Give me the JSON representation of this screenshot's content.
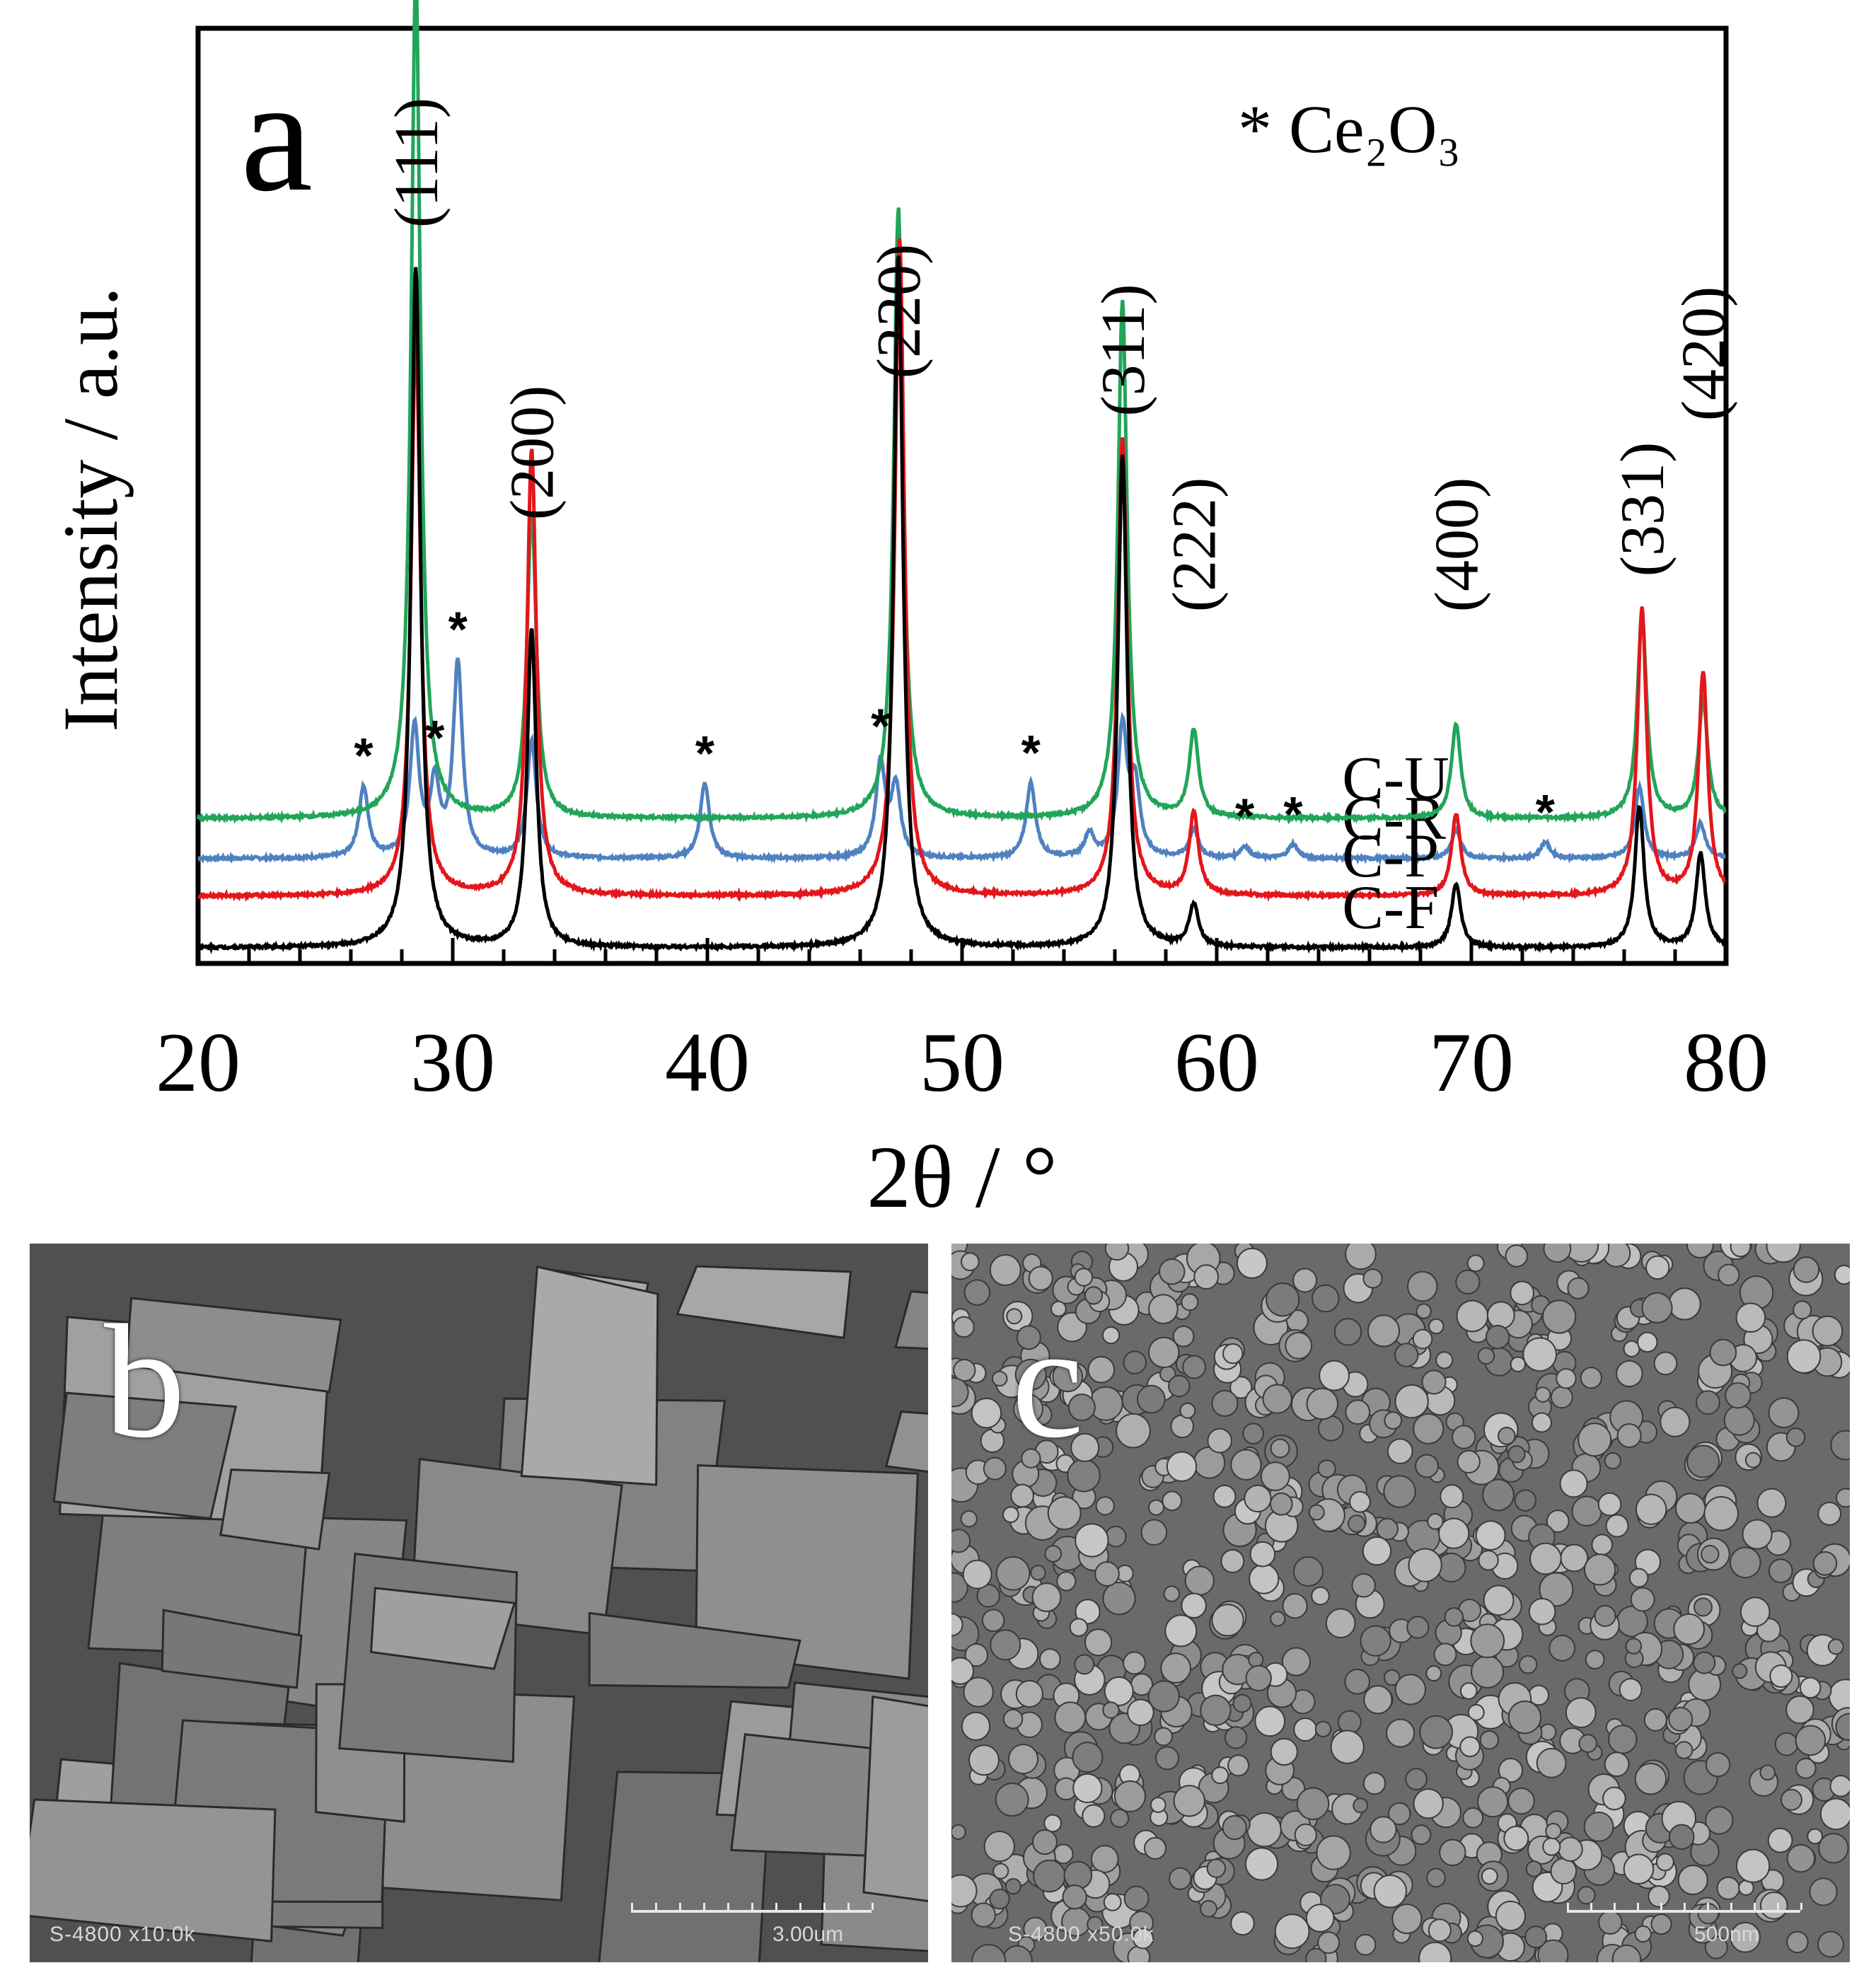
{
  "chart_data": {
    "type": "line",
    "panel_label": "a",
    "xlabel": "2θ / °",
    "ylabel": "Intensity / a.u.",
    "xlim": [
      20,
      80
    ],
    "x_ticks": [
      20,
      30,
      40,
      50,
      60,
      70,
      80
    ],
    "legend_note": "* Ce₂O₃",
    "series": [
      {
        "name": "C-U",
        "color": "#21a559",
        "baseline": 0.55,
        "peaks": [
          [
            28.55,
            3.6
          ],
          [
            33.1,
            1.3
          ],
          [
            47.5,
            2.6
          ],
          [
            56.3,
            2.2
          ],
          [
            59.1,
            0.37
          ],
          [
            69.4,
            0.4
          ],
          [
            76.7,
            0.87
          ],
          [
            79.1,
            0.5
          ]
        ]
      },
      {
        "name": "C-R",
        "color": "#4f81c0",
        "baseline": 0.38,
        "peaks": [
          [
            26.5,
            0.3
          ],
          [
            28.5,
            0.55
          ],
          [
            29.3,
            0.3
          ],
          [
            30.2,
            0.82
          ],
          [
            33.1,
            0.5
          ],
          [
            39.9,
            0.32
          ],
          [
            46.8,
            0.4
          ],
          [
            47.4,
            0.3
          ],
          [
            52.7,
            0.32
          ],
          [
            55.0,
            0.1
          ],
          [
            56.3,
            0.55
          ],
          [
            56.8,
            0.3
          ],
          [
            59.1,
            0.12
          ],
          [
            61.1,
            0.05
          ],
          [
            63.0,
            0.06
          ],
          [
            69.4,
            0.12
          ],
          [
            72.9,
            0.07
          ],
          [
            76.6,
            0.3
          ],
          [
            79.0,
            0.15
          ]
        ]
      },
      {
        "name": "C-P",
        "color": "#e3161b",
        "baseline": 0.22,
        "peaks": [
          [
            28.55,
            2.4
          ],
          [
            33.1,
            1.9
          ],
          [
            47.55,
            2.8
          ],
          [
            56.3,
            1.95
          ],
          [
            59.1,
            0.35
          ],
          [
            69.4,
            0.35
          ],
          [
            76.7,
            1.22
          ],
          [
            79.1,
            0.95
          ]
        ]
      },
      {
        "name": "C-F",
        "color": "#000000",
        "baseline": 0.0,
        "peaks": [
          [
            28.55,
            2.9
          ],
          [
            33.1,
            1.35
          ],
          [
            47.5,
            2.95
          ],
          [
            56.3,
            2.1
          ],
          [
            59.1,
            0.18
          ],
          [
            69.4,
            0.27
          ],
          [
            76.6,
            0.6
          ],
          [
            79.0,
            0.4
          ]
        ]
      }
    ],
    "reflections": [
      {
        "label": "(111)",
        "x": 28.55
      },
      {
        "label": "(200)",
        "x": 33.1
      },
      {
        "label": "(220)",
        "x": 47.5
      },
      {
        "label": "(311)",
        "x": 56.3
      },
      {
        "label": "(222)",
        "x": 59.1
      },
      {
        "label": "(400)",
        "x": 69.4
      },
      {
        "label": "(331)",
        "x": 76.7
      },
      {
        "label": "(420)",
        "x": 79.1
      }
    ],
    "ce2o3_markers": [
      26.5,
      29.3,
      30.2,
      39.9,
      46.8,
      52.7,
      61.1,
      63.0,
      72.9
    ],
    "grid": false
  },
  "sem_panels": [
    {
      "label": "b",
      "instrument": "S-4800 x10.0k",
      "scale": "3.00um"
    },
    {
      "label": "c",
      "instrument": "S-4800 x50.0k",
      "scale": "500nm"
    }
  ]
}
